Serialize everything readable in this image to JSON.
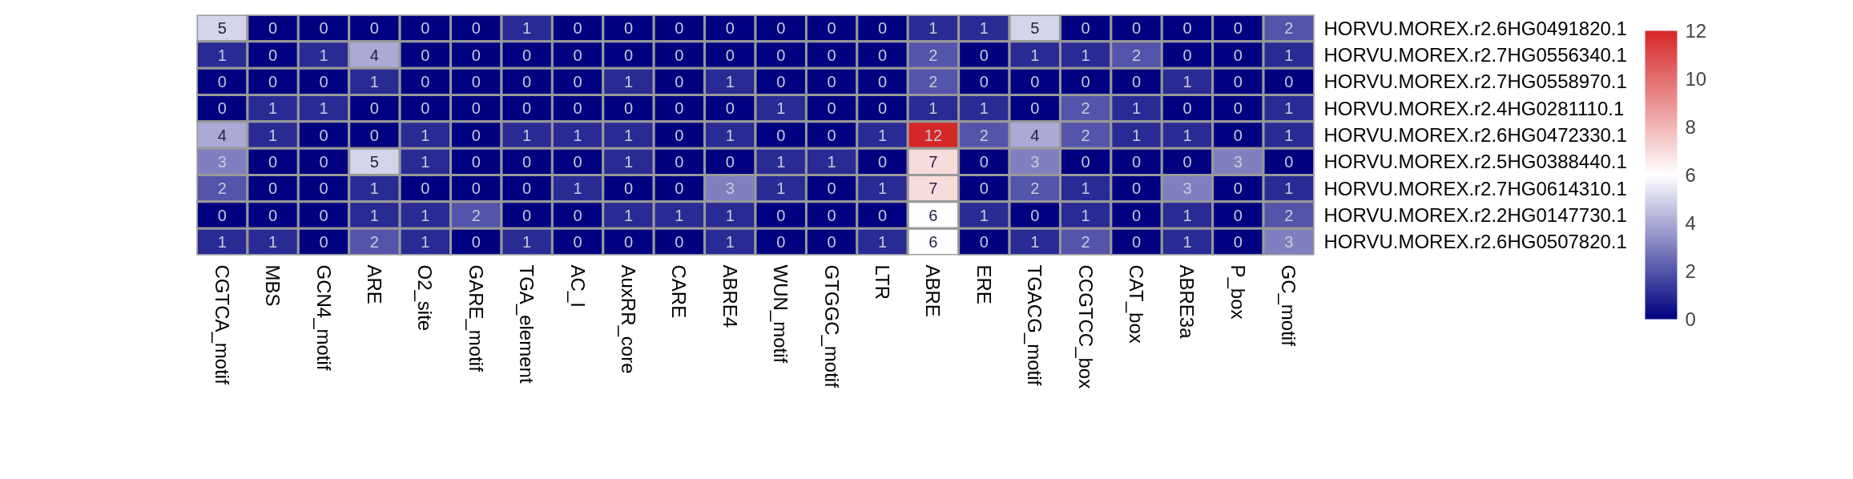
{
  "chart_data": {
    "type": "heatmap",
    "categories": [
      "CGTCA_motif",
      "MBS",
      "GCN4_motif",
      "ARE",
      "O2_site",
      "GARE_motif",
      "TGA_element",
      "AC_I",
      "AuxRR_core",
      "CARE",
      "ABRE4",
      "WUN_motif",
      "GTGGC_motif",
      "LTR",
      "ABRE",
      "ERE",
      "TGACG_motif",
      "CCGTCC_box",
      "CAT_box",
      "ABRE3a",
      "P_box",
      "GC_motif"
    ],
    "y_categories": [
      "HORVU.MOREX.r2.6HG0491820.1",
      "HORVU.MOREX.r2.7HG0556340.1",
      "HORVU.MOREX.r2.7HG0558970.1",
      "HORVU.MOREX.r2.4HG0281110.1",
      "HORVU.MOREX.r2.6HG0472330.1",
      "HORVU.MOREX.r2.5HG0388440.1",
      "HORVU.MOREX.r2.7HG0614310.1",
      "HORVU.MOREX.r2.2HG0147730.1",
      "HORVU.MOREX.r2.6HG0507820.1"
    ],
    "cells": [
      [
        5,
        0,
        0,
        0,
        0,
        0,
        1,
        0,
        0,
        0,
        0,
        0,
        0,
        0,
        1,
        1,
        5,
        0,
        0,
        0,
        0,
        2
      ],
      [
        1,
        0,
        1,
        4,
        0,
        0,
        0,
        0,
        0,
        0,
        0,
        0,
        0,
        0,
        2,
        0,
        1,
        1,
        2,
        0,
        0,
        1
      ],
      [
        0,
        0,
        0,
        1,
        0,
        0,
        0,
        0,
        1,
        0,
        1,
        0,
        0,
        0,
        2,
        0,
        0,
        0,
        0,
        1,
        0,
        0
      ],
      [
        0,
        1,
        1,
        0,
        0,
        0,
        0,
        0,
        0,
        0,
        0,
        1,
        0,
        0,
        1,
        1,
        0,
        2,
        1,
        0,
        0,
        1
      ],
      [
        4,
        1,
        0,
        0,
        1,
        0,
        1,
        1,
        1,
        0,
        1,
        0,
        0,
        1,
        12,
        2,
        4,
        2,
        1,
        1,
        0,
        1
      ],
      [
        3,
        0,
        0,
        5,
        1,
        0,
        0,
        0,
        1,
        0,
        0,
        1,
        1,
        0,
        7,
        0,
        3,
        0,
        0,
        0,
        3,
        0
      ],
      [
        2,
        0,
        0,
        1,
        0,
        0,
        0,
        1,
        0,
        0,
        3,
        1,
        0,
        1,
        7,
        0,
        2,
        1,
        0,
        3,
        0,
        1
      ],
      [
        0,
        0,
        0,
        1,
        1,
        2,
        0,
        0,
        1,
        1,
        1,
        0,
        0,
        0,
        6,
        1,
        0,
        1,
        0,
        1,
        0,
        2
      ],
      [
        1,
        1,
        0,
        2,
        1,
        0,
        1,
        0,
        0,
        0,
        1,
        0,
        0,
        1,
        6,
        0,
        1,
        2,
        0,
        1,
        0,
        3
      ]
    ],
    "clim": [
      0,
      12
    ],
    "cticks": [
      0,
      2,
      4,
      6,
      8,
      10,
      12
    ],
    "data_labels": true
  }
}
